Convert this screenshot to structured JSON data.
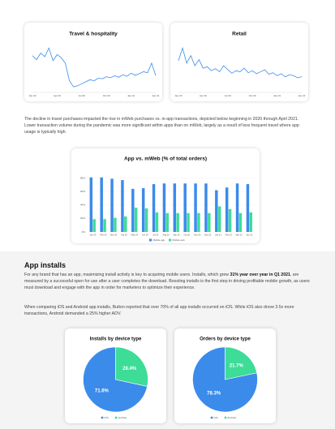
{
  "line_charts": [
    {
      "type": "line",
      "title": "Travel & hospitality",
      "color": "#3b8beb",
      "ylim": [
        0,
        100
      ],
      "categories": [
        "Jan 20",
        null,
        null,
        null,
        null,
        null,
        "Apr 20",
        null,
        null,
        null,
        null,
        null,
        "Jul 20",
        null,
        null,
        null,
        null,
        null,
        "Oct 20",
        null,
        null,
        null,
        null,
        null,
        "Jan 21",
        null,
        null,
        null,
        null,
        null,
        "Apr 21"
      ],
      "values": [
        70,
        62,
        75,
        68,
        85,
        60,
        72,
        66,
        55,
        20,
        8,
        10,
        14,
        18,
        22,
        20,
        25,
        24,
        28,
        26,
        30,
        27,
        32,
        29,
        35,
        31,
        34,
        38,
        36,
        55,
        30
      ]
    },
    {
      "type": "line",
      "title": "Retail",
      "color": "#3b8beb",
      "ylim": [
        0,
        100
      ],
      "categories": [
        "Jan 20",
        null,
        null,
        null,
        null,
        null,
        "Apr 20",
        null,
        null,
        null,
        null,
        null,
        "Jul 20",
        null,
        null,
        null,
        null,
        null,
        "Oct 20",
        null,
        null,
        null,
        null,
        null,
        "Jan 21",
        null,
        null,
        null,
        null,
        null,
        "Apr 21"
      ],
      "values": [
        60,
        85,
        55,
        70,
        50,
        62,
        45,
        48,
        40,
        44,
        38,
        50,
        42,
        35,
        40,
        38,
        45,
        36,
        40,
        34,
        38,
        42,
        33,
        36,
        30,
        34,
        28,
        32,
        30,
        26,
        28
      ]
    }
  ],
  "paragraph_1": "The decline in travel purchases impacted the rise in mWeb purchases vs. in-app transactions, depicted below beginning in 2020 through April 2021. Lower transaction volume during the pandemic was more significant within apps than on mWeb, largely as a result of less frequent travel where app usage is typically high.",
  "bar_chart": {
    "type": "bar",
    "title": "App vs. mWeb (% of total orders)",
    "categories": [
      "Jan 20",
      "Feb 20",
      "Mar 20",
      "Apr 20",
      "May 20",
      "Jun 20",
      "Jul 20",
      "Aug 20",
      "Sep 20",
      "Oct 20",
      "Nov 20",
      "Dec 20",
      "Jan 21",
      "Feb 21",
      "Mar 21",
      "Apr 21"
    ],
    "series": [
      {
        "name": "Mobile app",
        "color": "#3b8beb",
        "values": [
          81,
          81,
          79,
          77,
          64,
          65,
          71,
          72,
          72,
          72,
          72,
          72,
          62,
          66,
          72,
          71
        ]
      },
      {
        "name": "Mobile web",
        "color": "#3ddc97",
        "values": [
          19,
          19,
          21,
          23,
          36,
          35,
          29,
          28,
          28,
          28,
          28,
          28,
          38,
          34,
          28,
          29
        ]
      }
    ],
    "ylim": [
      0,
      100
    ],
    "yticks": [
      {
        "value": 0,
        "label": "0%"
      },
      {
        "value": 20,
        "label": "20%"
      },
      {
        "value": 40,
        "label": "40%"
      },
      {
        "value": 60,
        "label": "60%"
      },
      {
        "value": 80,
        "label": "80%"
      }
    ],
    "grid": true
  },
  "section_title": "App installs",
  "paragraph_2": [
    {
      "text": "For any brand that has an app, maximizing install activity is key to acquiring mobile users. Installs, which grew "
    },
    {
      "text": "31% year over year in Q1 2021",
      "bold": true
    },
    {
      "text": ", are measured by a successful open for use after a user completes the download. Boosting installs is the first step in driving profitable mobile growth, as users must download and engage with the app in order for marketers to optimize their experience."
    }
  ],
  "paragraph_3": "When comparing iOS and Android app installs, Button reported that over 70% of all app installs occurred on iOS. While iOS also drove 3.5x more transactions, Android demanded a 25% higher AOV.",
  "pie_charts": [
    {
      "type": "pie",
      "title": "Installs by device type",
      "categories": [
        "iOS",
        "Android"
      ],
      "values": [
        71.6,
        28.4
      ],
      "value_labels": [
        "71.6%",
        "28.4%"
      ],
      "colors": [
        "#3b8beb",
        "#3ddc97"
      ]
    },
    {
      "type": "pie",
      "title": "Orders by device type",
      "categories": [
        "iOS",
        "Android"
      ],
      "values": [
        78.3,
        21.7
      ],
      "value_labels": [
        "78.3%",
        "21.7%"
      ],
      "colors": [
        "#3b8beb",
        "#3ddc97"
      ]
    }
  ]
}
